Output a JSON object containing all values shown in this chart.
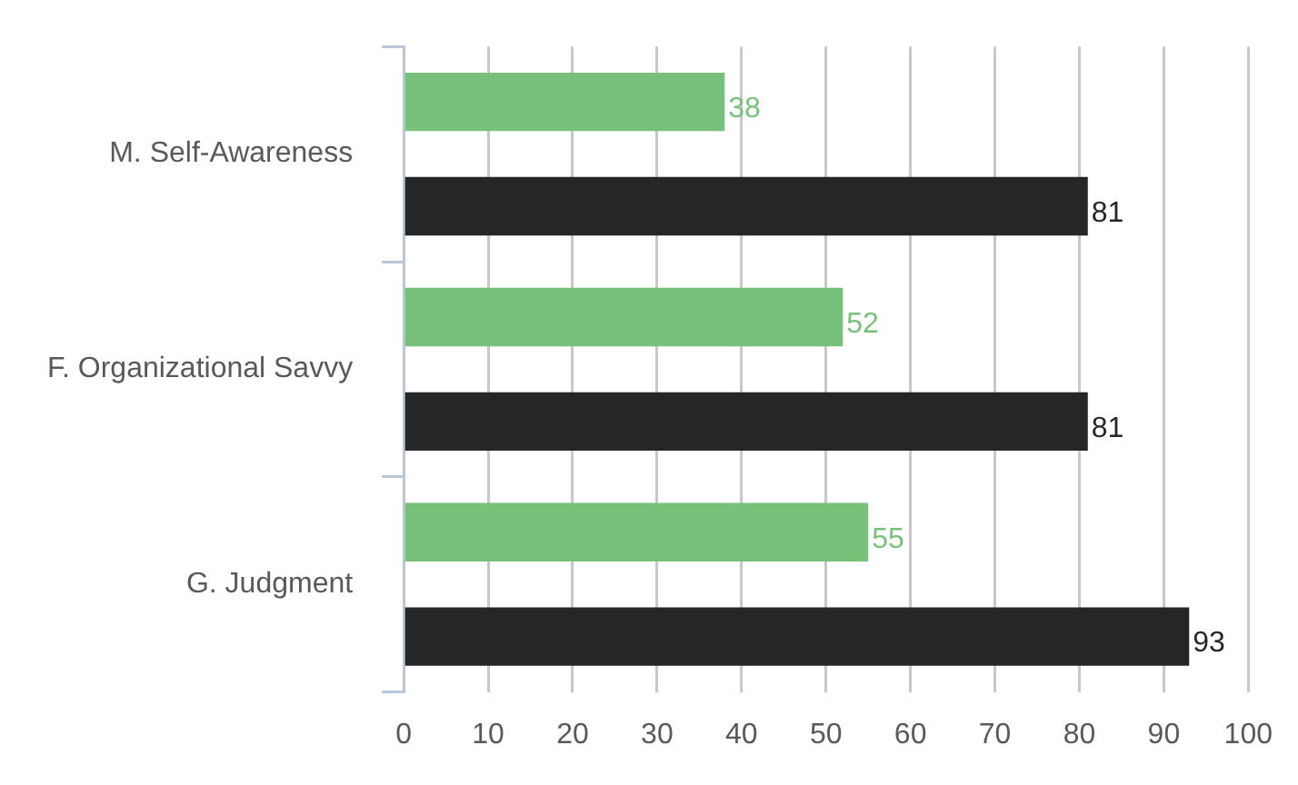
{
  "chart_data": {
    "type": "bar",
    "orientation": "horizontal",
    "categories": [
      "M. Self-Awareness",
      "F. Organizational Savvy",
      "G. Judgment"
    ],
    "series": [
      {
        "color": "#77c17a",
        "values": [
          38,
          52,
          55
        ]
      },
      {
        "color": "#262626",
        "values": [
          81,
          81,
          93
        ]
      }
    ],
    "xlim": [
      0,
      100
    ],
    "xticks": [
      0,
      10,
      20,
      30,
      40,
      50,
      60,
      70,
      80,
      90,
      100
    ],
    "grid": "x",
    "legend": false,
    "data_labels": true
  }
}
